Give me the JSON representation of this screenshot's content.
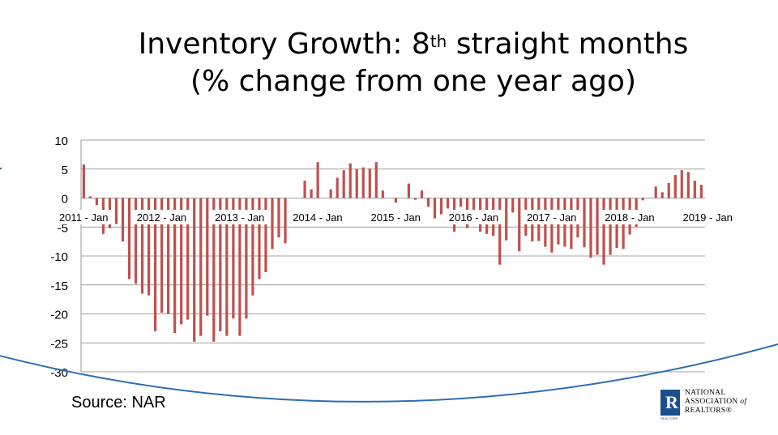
{
  "slide": {
    "title_main": "Inventory Growth: 8",
    "title_sup": "th",
    "title_rest": " straight months",
    "subtitle": "(% change from one year ago)",
    "source": "Source: NAR",
    "logo": {
      "mark": "R",
      "line1": "NATIONAL",
      "line2": "ASSOCIATION",
      "line2_italic": "of",
      "line3": "REALTORS®",
      "sub": "REALTOR®"
    }
  },
  "colors": {
    "bar": "#c0504d",
    "curve": "#2e6db4",
    "axis": "#808080"
  },
  "chart_data": {
    "type": "bar",
    "title": "Inventory Growth: 8th straight months (% change from one year ago)",
    "xlabel": "",
    "ylabel": "",
    "ylim": [
      -30,
      10
    ],
    "yticks": [
      "10",
      "5",
      "0",
      "-5",
      "-10",
      "-15",
      "-20",
      "-25",
      "-30"
    ],
    "ytick_values": [
      10,
      5,
      0,
      -5,
      -10,
      -15,
      -20,
      -25,
      -30
    ],
    "xtick_labels": [
      "2011 - Jan",
      "2012 - Jan",
      "2013 - Jan",
      "2014 - Jan",
      "2015 - Jan",
      "2016 - Jan",
      "2017 - Jan",
      "2018 - Jan",
      "2019 - Jan"
    ],
    "xtick_index": [
      0,
      12,
      24,
      36,
      48,
      60,
      72,
      84,
      96
    ],
    "start": "2011 - Jan",
    "values": [
      5.8,
      0.3,
      -1.2,
      -6.2,
      -5.2,
      -4.5,
      -7.5,
      -14.0,
      -14.8,
      -16.5,
      -16.8,
      -23.0,
      -19.8,
      -20.0,
      -23.3,
      -21.8,
      -21.0,
      -24.8,
      -23.8,
      -20.3,
      -24.8,
      -23.0,
      -23.8,
      -20.8,
      -23.8,
      -20.8,
      -16.8,
      -14.0,
      -12.8,
      -8.8,
      -6.8,
      -7.8,
      0,
      0,
      3.0,
      1.5,
      6.2,
      0,
      1.5,
      3.5,
      4.8,
      6.0,
      5.0,
      5.3,
      5.1,
      6.2,
      1.3,
      0,
      -0.8,
      0,
      2.5,
      -0.3,
      1.3,
      -1.5,
      -3.5,
      -2.8,
      -1.8,
      -5.8,
      -1.5,
      -5.2,
      -2.5,
      -5.8,
      -6.2,
      -6.5,
      -11.5,
      -7.3,
      -2.5,
      -9.2,
      -6.5,
      -7.5,
      -7.4,
      -8.4,
      -9.4,
      -8.0,
      -8.4,
      -8.8,
      -6.8,
      -8.5,
      -10.3,
      -9.8,
      -11.5,
      -9.8,
      -8.6,
      -8.8,
      -6.3,
      -5.0,
      -0.4,
      0,
      2.0,
      1.0,
      2.6,
      4.0,
      4.8,
      4.5,
      3.0,
      2.3
    ]
  }
}
